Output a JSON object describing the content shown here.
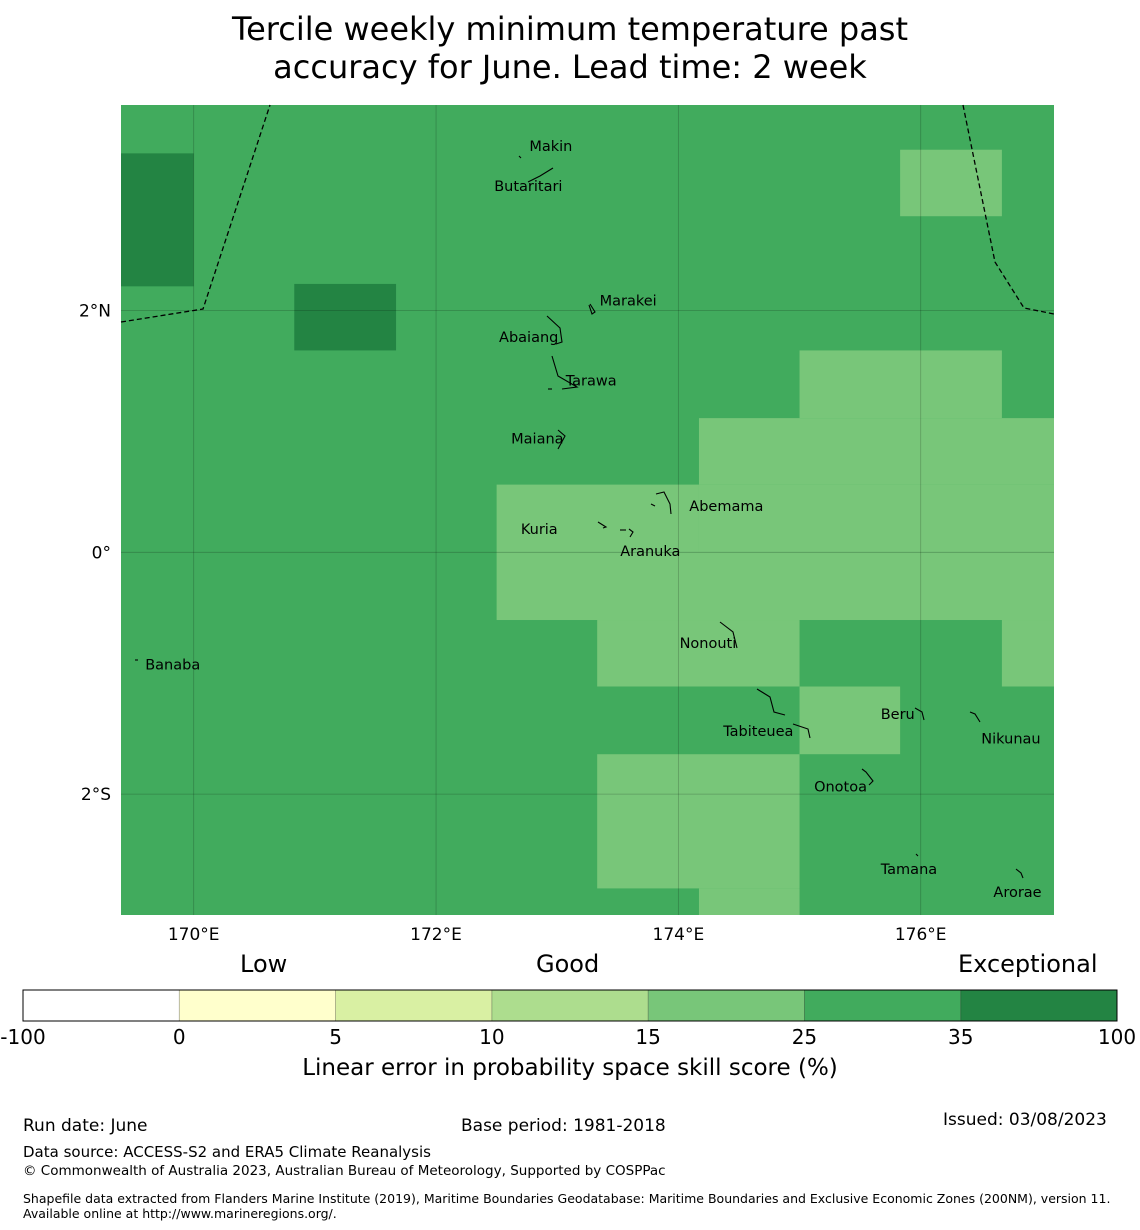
{
  "title_lines": [
    "Tercile weekly minimum temperature past",
    "accuracy for June. Lead time: 2 week"
  ],
  "map": {
    "lon_range": [
      169.4,
      177.1
    ],
    "lat_range": [
      -3.0,
      3.7
    ],
    "x_ticks": [
      {
        "v": 170,
        "label": "170°E"
      },
      {
        "v": 172,
        "label": "172°E"
      },
      {
        "v": 174,
        "label": "174°E"
      },
      {
        "v": 176,
        "label": "176°E"
      }
    ],
    "y_ticks": [
      {
        "v": 2,
        "label": "2°N"
      },
      {
        "v": 0,
        "label": "0°"
      },
      {
        "v": -2,
        "label": "2°S"
      }
    ],
    "base_color": "#41ab5d",
    "cells": [
      {
        "lon": [
          169.4,
          170.0
        ],
        "lat": [
          2.2,
          3.3
        ],
        "color": "#238443"
      },
      {
        "lon": [
          170.83,
          171.67
        ],
        "lat": [
          1.67,
          2.22
        ],
        "color": "#238443"
      },
      {
        "lon": [
          175.83,
          176.67
        ],
        "lat": [
          2.78,
          3.33
        ],
        "color": "#78c679"
      },
      {
        "lon": [
          175.0,
          176.67
        ],
        "lat": [
          1.11,
          1.67
        ],
        "color": "#78c679"
      },
      {
        "lon": [
          174.17,
          177.1
        ],
        "lat": [
          0.56,
          1.11
        ],
        "color": "#78c679"
      },
      {
        "lon": [
          172.5,
          174.17
        ],
        "lat": [
          0.0,
          0.56
        ],
        "color": "#78c679"
      },
      {
        "lon": [
          174.17,
          177.1
        ],
        "lat": [
          0.0,
          0.56
        ],
        "color": "#78c679"
      },
      {
        "lon": [
          172.5,
          177.1
        ],
        "lat": [
          -0.56,
          0.0
        ],
        "color": "#78c679"
      },
      {
        "lon": [
          173.33,
          175.0
        ],
        "lat": [
          -1.11,
          -0.56
        ],
        "color": "#78c679"
      },
      {
        "lon": [
          176.67,
          177.1
        ],
        "lat": [
          -1.11,
          -0.56
        ],
        "color": "#78c679"
      },
      {
        "lon": [
          175.0,
          175.83
        ],
        "lat": [
          -1.67,
          -1.11
        ],
        "color": "#78c679"
      },
      {
        "lon": [
          173.33,
          175.0
        ],
        "lat": [
          -2.78,
          -1.67
        ],
        "color": "#78c679"
      },
      {
        "lon": [
          174.17,
          175.0
        ],
        "lat": [
          -3.0,
          -2.78
        ],
        "color": "#78c679"
      }
    ],
    "places": [
      {
        "name": "Makin",
        "lon": 172.77,
        "lat": 3.32
      },
      {
        "name": "Butaritari",
        "lon": 172.48,
        "lat": 2.99
      },
      {
        "name": "Marakei",
        "lon": 173.35,
        "lat": 2.04
      },
      {
        "name": "Abaiang",
        "lon": 172.52,
        "lat": 1.74
      },
      {
        "name": "Tarawa",
        "lon": 173.07,
        "lat": 1.38
      },
      {
        "name": "Maiana",
        "lon": 172.62,
        "lat": 0.9
      },
      {
        "name": "Abemama",
        "lon": 174.09,
        "lat": 0.34
      },
      {
        "name": "Kuria",
        "lon": 172.7,
        "lat": 0.15
      },
      {
        "name": "Aranuka",
        "lon": 173.52,
        "lat": -0.03
      },
      {
        "name": "Nonouti",
        "lon": 174.01,
        "lat": -0.79
      },
      {
        "name": "Banaba",
        "lon": 169.6,
        "lat": -0.97
      },
      {
        "name": "Tabiteuea",
        "lon": 174.37,
        "lat": -1.52
      },
      {
        "name": "Beru",
        "lon": 175.67,
        "lat": -1.38
      },
      {
        "name": "Nikunau",
        "lon": 176.5,
        "lat": -1.58
      },
      {
        "name": "Onotoa",
        "lon": 175.12,
        "lat": -1.98
      },
      {
        "name": "Tamana",
        "lon": 175.67,
        "lat": -2.66
      },
      {
        "name": "Arorae",
        "lon": 176.6,
        "lat": -2.85
      }
    ]
  },
  "category_labels": [
    "Low",
    "Good",
    "Exceptional"
  ],
  "colorbar": {
    "bounds": [
      "-100",
      "0",
      "5",
      "10",
      "15",
      "25",
      "35",
      "100"
    ],
    "colors": [
      "#ffffff",
      "#ffffcc",
      "#d9f0a3",
      "#addd8e",
      "#78c679",
      "#41ab5d",
      "#238443"
    ],
    "label": "Linear error in probability space skill score (%)"
  },
  "footer": {
    "run_date": "Run date: June",
    "base_period": "Base period: 1981-2018",
    "issued": "Issued: 03/08/2023",
    "data_source": "Data source: ACCESS-S2 and ERA5 Climate Reanalysis",
    "copyright": "© Commonwealth of Australia 2023, Australian Bureau of Meteorology, Supported by COSPPac",
    "shapefile": "Shapefile data extracted from Flanders Marine Institute (2019), Maritime Boundaries Geodatabase: Maritime Boundaries and Exclusive Economic Zones (200NM), version 11. Available online at http://www.marineregions.org/."
  }
}
